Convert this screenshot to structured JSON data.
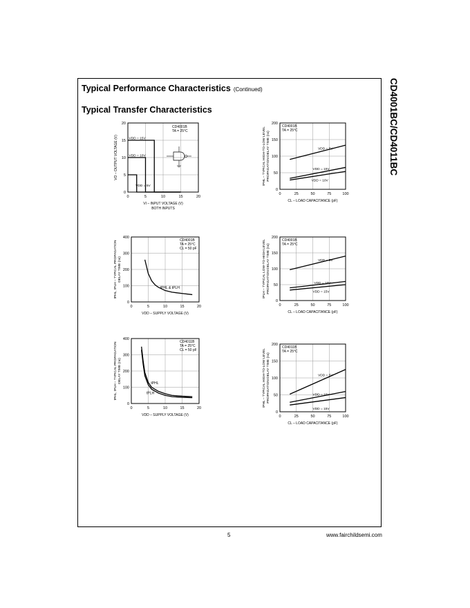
{
  "header": {
    "title": "Typical Performance Characteristics",
    "continued": "(Continued)",
    "subtitle": "Typical Transfer Characteristics",
    "side_title": "CD4001BC/CD4011BC"
  },
  "footer": {
    "page_number": "5",
    "url": "www.fairchildsemi.com"
  },
  "chart_data": [
    {
      "id": "transfer",
      "type": "line",
      "device": "CD4001B",
      "condition": "TA = 25°C",
      "xlabel": "VI – INPUT VOLTAGE (V)",
      "xlabel2": "BOTH INPUTS",
      "ylabel": "VO – OUTPUT VOLTAGE (V)",
      "xlim": [
        0,
        20
      ],
      "ylim": [
        0,
        20
      ],
      "xticks": [
        0,
        5,
        10,
        15,
        20
      ],
      "yticks": [
        0,
        5,
        10,
        15,
        20
      ],
      "grid": true,
      "series": [
        {
          "name": "VDD = 15V",
          "x": [
            0,
            7.5,
            7.5,
            15
          ],
          "y": [
            15,
            15,
            0,
            0
          ]
        },
        {
          "name": "VDD = 10V",
          "x": [
            0,
            5,
            5,
            15
          ],
          "y": [
            10,
            10,
            0,
            0
          ]
        },
        {
          "name": "VDD = 5V",
          "x": [
            0,
            2.5,
            2.5,
            15
          ],
          "y": [
            5,
            5,
            0,
            0
          ]
        }
      ]
    },
    {
      "id": "cd4001-load",
      "type": "line",
      "device": "CD4001B",
      "condition": "TA = 25°C",
      "xlabel": "CL – LOAD CAPACITANCE (pF)",
      "ylabel": "tPHL – TYPICAL HIGH-TO-LOW LEVEL",
      "ylabel2": "PROPAGATION DELAY TIME (ns)",
      "xlim": [
        0,
        100
      ],
      "ylim": [
        0,
        200
      ],
      "xticks": [
        0,
        25,
        50,
        75,
        100
      ],
      "yticks": [
        0,
        50,
        100,
        150,
        200
      ],
      "grid": true,
      "series": [
        {
          "name": "VDD = 5V",
          "x": [
            15,
            100
          ],
          "y": [
            90,
            133
          ]
        },
        {
          "name": "VDD = 15V",
          "x": [
            15,
            100
          ],
          "y": [
            33,
            66
          ]
        },
        {
          "name": "VDD = 10V",
          "x": [
            15,
            100
          ],
          "y": [
            28,
            54
          ]
        }
      ]
    },
    {
      "id": "cd4001-supply",
      "type": "line",
      "device": "CD4001B",
      "condition": "TA = 25°C",
      "condition2": "CL = 50 pF",
      "curve_label": "tPHL & tPLH",
      "xlabel": "VDD – SUPPLY VOLTAGE (V)",
      "ylabel": "tPHL, tPLH – TYPICAL PROPAGATION",
      "ylabel2": "DELAY TIME (ns)",
      "xlim": [
        0,
        20
      ],
      "ylim": [
        0,
        400
      ],
      "xticks": [
        0,
        5,
        10,
        15,
        20
      ],
      "yticks": [
        0,
        100,
        200,
        300,
        400
      ],
      "grid": true,
      "series": [
        {
          "name": "tPHL & tPLH",
          "x": [
            4,
            5,
            6,
            7,
            8,
            10,
            12,
            15,
            18
          ],
          "y": [
            260,
            175,
            130,
            105,
            90,
            70,
            60,
            52,
            45
          ]
        }
      ]
    },
    {
      "id": "cd4001-load-2",
      "type": "line",
      "device": "CD4001B",
      "condition": "TA = 25°C",
      "xlabel": "CL – LOAD CAPACITANCE (pF)",
      "ylabel": "tPLH – TYPICAL LOW-TO-HIGH LEVEL",
      "ylabel2": "PROPAGATION DELAY TIME (ns)",
      "xlim": [
        0,
        100
      ],
      "ylim": [
        0,
        200
      ],
      "xticks": [
        0,
        25,
        50,
        75,
        100
      ],
      "yticks": [
        0,
        50,
        100,
        150,
        200
      ],
      "grid": true,
      "series": [
        {
          "name": "VDD = 5V",
          "x": [
            15,
            100
          ],
          "y": [
            97,
            140
          ]
        },
        {
          "name": "VDD = 10V",
          "x": [
            15,
            100
          ],
          "y": [
            40,
            60
          ]
        },
        {
          "name": "VDD = 15V",
          "x": [
            15,
            100
          ],
          "y": [
            33,
            50
          ]
        }
      ]
    },
    {
      "id": "cd4011-supply",
      "type": "line",
      "device": "CD4011B",
      "condition": "TA = 25°C",
      "condition2": "CL = 50 pF",
      "xlabel": "VDD – SUPPLY VOLTAGE (V)",
      "ylabel": "tPHL, tPLH – TYPICAL PROPAGATION",
      "ylabel2": "DELAY TIME (ns)",
      "xlim": [
        0,
        20
      ],
      "ylim": [
        0,
        400
      ],
      "xticks": [
        0,
        5,
        10,
        15,
        20
      ],
      "yticks": [
        0,
        100,
        200,
        300,
        400
      ],
      "grid": true,
      "series": [
        {
          "name": "tPHL",
          "x": [
            3,
            3.5,
            4,
            5,
            6,
            8,
            10,
            12,
            15,
            18
          ],
          "y": [
            350,
            260,
            190,
            130,
            100,
            75,
            60,
            50,
            45,
            42
          ]
        },
        {
          "name": "tPLH",
          "x": [
            3,
            3.5,
            4,
            5,
            6,
            8,
            10,
            12,
            15,
            18
          ],
          "y": [
            330,
            240,
            170,
            115,
            88,
            64,
            50,
            42,
            38,
            36
          ]
        }
      ]
    },
    {
      "id": "cd4011-load",
      "type": "line",
      "device": "CD4011B",
      "condition": "TA = 25°C",
      "xlabel": "CL – LOAD CAPACITANCE (pF)",
      "ylabel": "tPHL – TYPICAL HIGH-TO-LOW LEVEL",
      "ylabel2": "PROPAGATION DELAY TIME (ns)",
      "xlim": [
        0,
        100
      ],
      "ylim": [
        0,
        200
      ],
      "xticks": [
        0,
        25,
        50,
        75,
        100
      ],
      "yticks": [
        0,
        50,
        100,
        150,
        200
      ],
      "grid": true,
      "series": [
        {
          "name": "VDD = 5V",
          "x": [
            15,
            100
          ],
          "y": [
            52,
            125
          ]
        },
        {
          "name": "VDD = 10V",
          "x": [
            15,
            100
          ],
          "y": [
            28,
            60
          ]
        },
        {
          "name": "VDD = 15V",
          "x": [
            15,
            100
          ],
          "y": [
            20,
            42
          ]
        }
      ]
    }
  ]
}
